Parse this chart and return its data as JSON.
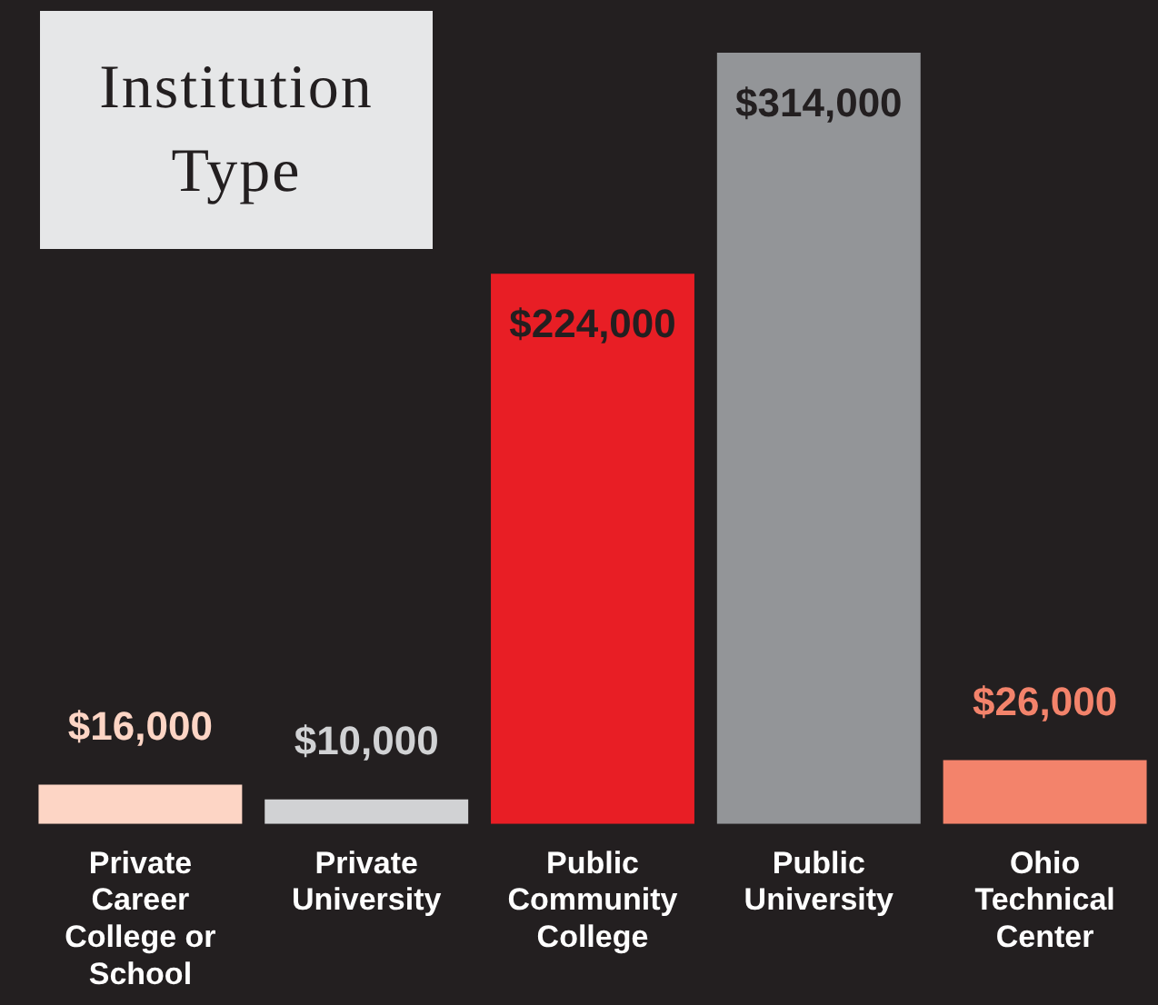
{
  "chart_data": {
    "type": "bar",
    "title": "Institution Type",
    "categories": [
      "Private Career College or School",
      "Private University",
      "Public Community College",
      "Public University",
      "Ohio Technical Center"
    ],
    "values": [
      16000,
      10000,
      224000,
      314000,
      26000
    ],
    "colors": [
      "#fdd5c5",
      "#d1d2d4",
      "#e81e25",
      "#939598",
      "#f3836b"
    ],
    "value_labels": [
      "$16,000",
      "$10,000",
      "$224,000",
      "$314,000",
      "$26,000"
    ]
  }
}
